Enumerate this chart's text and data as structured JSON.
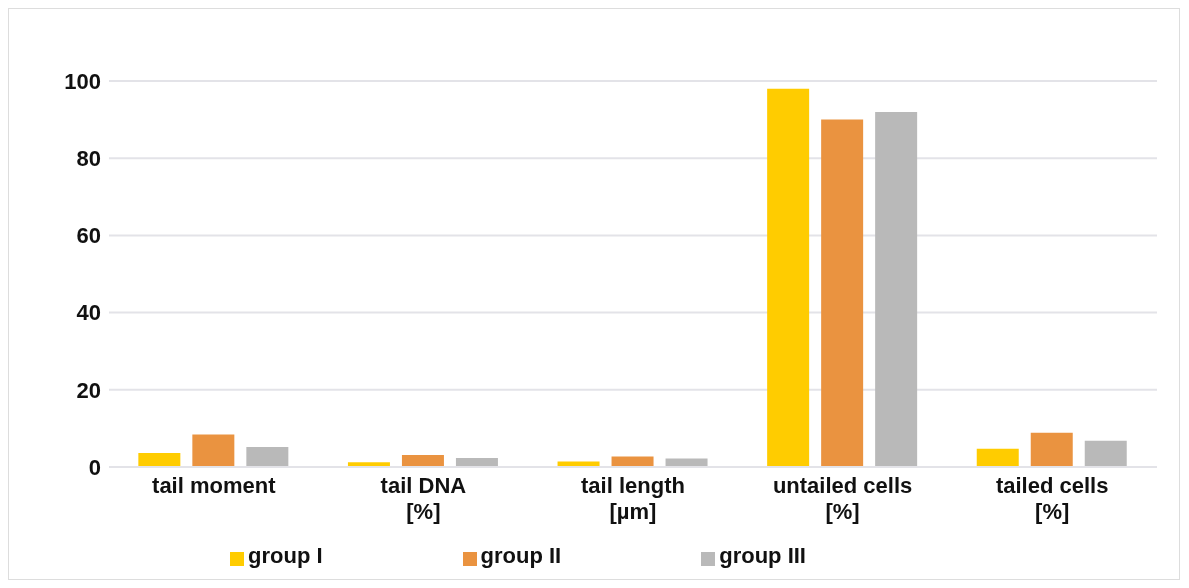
{
  "chart_data": {
    "type": "bar",
    "categories": [
      "tail moment",
      "tail DNA\n[%]",
      "tail length\n[µm]",
      "untailed cells\n[%]",
      "tailed cells\n[%]"
    ],
    "series": [
      {
        "name": "group I",
        "color": "#ffcc00",
        "values": [
          3.6,
          1.2,
          1.4,
          98,
          4.7
        ]
      },
      {
        "name": "group II",
        "color": "#ea9340",
        "values": [
          8.4,
          3.1,
          2.7,
          90,
          8.9
        ]
      },
      {
        "name": "group III",
        "color": "#b9b9b9",
        "values": [
          5.2,
          2.3,
          2.2,
          92,
          6.8
        ]
      }
    ],
    "ylim": [
      0,
      100
    ],
    "yticks": [
      0,
      20,
      40,
      60,
      80,
      100
    ],
    "grid": "y",
    "legend": "bottom"
  }
}
